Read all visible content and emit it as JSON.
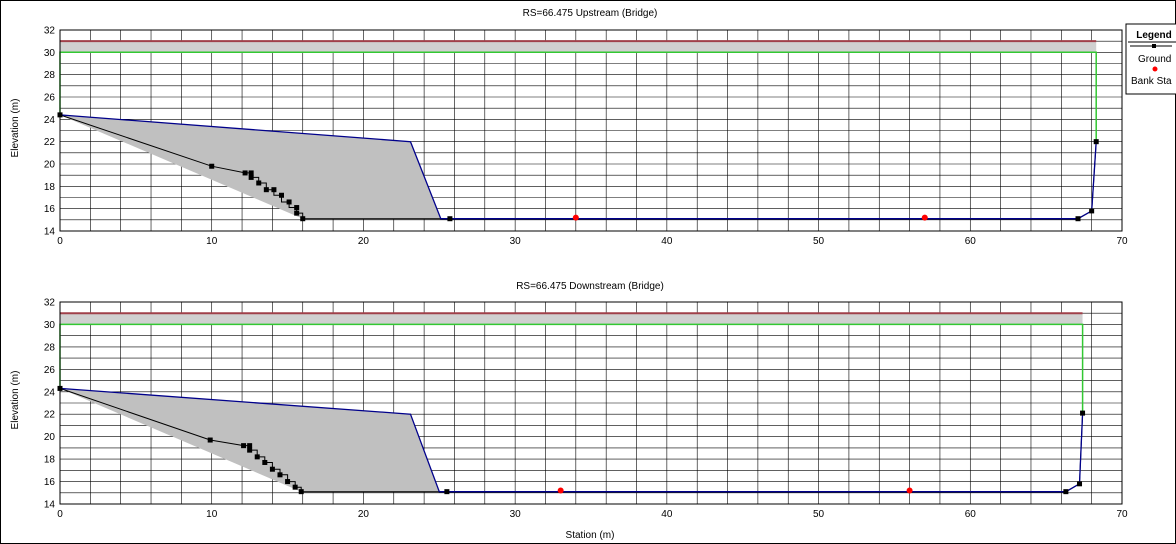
{
  "chart_data": [
    {
      "type": "line",
      "title": "RS=66.475  Upstream  (Bridge)",
      "ylabel": "Elevation (m)",
      "xlabel": "",
      "xlim": [
        0,
        70
      ],
      "ylim": [
        14,
        32
      ],
      "xticks": [
        0,
        10,
        20,
        30,
        40,
        50,
        60,
        70
      ],
      "yticks": [
        14,
        16,
        18,
        20,
        22,
        24,
        26,
        28,
        30,
        32
      ],
      "deck": {
        "low_chord": 30,
        "high_chord": 31,
        "x_start": 0,
        "x_end": 68.3
      },
      "green_outline": [
        [
          0,
          24.4
        ],
        [
          0,
          30
        ],
        [
          68.3,
          30
        ],
        [
          68.3,
          22
        ]
      ],
      "ground": [
        [
          0,
          24.4
        ],
        [
          10,
          19.8
        ],
        [
          12.2,
          19.2
        ],
        [
          12.6,
          19.2
        ],
        [
          12.6,
          18.8
        ],
        [
          13.1,
          18.8
        ],
        [
          13.1,
          18.3
        ],
        [
          13.6,
          18.3
        ],
        [
          13.6,
          17.7
        ],
        [
          14.1,
          17.7
        ],
        [
          14.1,
          17.2
        ],
        [
          14.6,
          17.2
        ],
        [
          14.6,
          16.6
        ],
        [
          15.1,
          16.6
        ],
        [
          15.1,
          16.1
        ],
        [
          15.6,
          16.1
        ],
        [
          15.6,
          15.6
        ],
        [
          16.0,
          15.6
        ],
        [
          16.0,
          15.1
        ],
        [
          25.7,
          15.1
        ],
        [
          67.1,
          15.1
        ],
        [
          68.0,
          15.8
        ],
        [
          68.3,
          22
        ]
      ],
      "ground_markers": [
        [
          0,
          24.4
        ],
        [
          10,
          19.8
        ],
        [
          12.2,
          19.2
        ],
        [
          12.6,
          19.2
        ],
        [
          12.6,
          18.8
        ],
        [
          13.1,
          18.3
        ],
        [
          13.6,
          17.7
        ],
        [
          14.1,
          17.7
        ],
        [
          14.6,
          17.2
        ],
        [
          15.1,
          16.6
        ],
        [
          15.6,
          16.1
        ],
        [
          15.6,
          15.6
        ],
        [
          16.0,
          15.1
        ],
        [
          25.7,
          15.1
        ],
        [
          67.1,
          15.1
        ],
        [
          68.0,
          15.8
        ],
        [
          68.3,
          22
        ]
      ],
      "pier": [
        [
          0,
          24.4
        ],
        [
          23.1,
          22
        ],
        [
          25.1,
          15.1
        ],
        [
          16.0,
          15.1
        ]
      ],
      "bridge_profile": [
        [
          0,
          24.4
        ],
        [
          23.1,
          22
        ],
        [
          25.1,
          15.1
        ],
        [
          67.1,
          15.1
        ],
        [
          68.0,
          15.8
        ],
        [
          68.3,
          22
        ]
      ],
      "bank_stations": [
        [
          34,
          15.2
        ],
        [
          57,
          15.2
        ]
      ]
    },
    {
      "type": "line",
      "title": "RS=66.475  Downstream  (Bridge)",
      "ylabel": "Elevation (m)",
      "xlabel": "Station (m)",
      "xlim": [
        0,
        70
      ],
      "ylim": [
        14,
        32
      ],
      "xticks": [
        0,
        10,
        20,
        30,
        40,
        50,
        60,
        70
      ],
      "yticks": [
        14,
        16,
        18,
        20,
        22,
        24,
        26,
        28,
        30,
        32
      ],
      "deck": {
        "low_chord": 30,
        "high_chord": 31,
        "x_start": 0,
        "x_end": 67.4
      },
      "green_outline": [
        [
          0,
          24.3
        ],
        [
          0,
          30
        ],
        [
          67.4,
          30
        ],
        [
          67.4,
          22.1
        ]
      ],
      "ground": [
        [
          0,
          24.3
        ],
        [
          9.9,
          19.7
        ],
        [
          12.1,
          19.2
        ],
        [
          12.5,
          19.2
        ],
        [
          12.5,
          18.8
        ],
        [
          13.0,
          18.8
        ],
        [
          13.0,
          18.2
        ],
        [
          13.5,
          18.2
        ],
        [
          13.5,
          17.7
        ],
        [
          14.0,
          17.7
        ],
        [
          14.0,
          17.1
        ],
        [
          14.5,
          17.1
        ],
        [
          14.5,
          16.6
        ],
        [
          15.0,
          16.6
        ],
        [
          15.0,
          16.0
        ],
        [
          15.5,
          16.0
        ],
        [
          15.5,
          15.5
        ],
        [
          15.9,
          15.5
        ],
        [
          15.9,
          15.1
        ],
        [
          25.5,
          15.1
        ],
        [
          66.3,
          15.1
        ],
        [
          67.2,
          15.8
        ],
        [
          67.4,
          22.1
        ]
      ],
      "ground_markers": [
        [
          0,
          24.3
        ],
        [
          9.9,
          19.7
        ],
        [
          12.1,
          19.2
        ],
        [
          12.5,
          19.2
        ],
        [
          12.5,
          18.8
        ],
        [
          13.0,
          18.2
        ],
        [
          13.5,
          17.7
        ],
        [
          14.0,
          17.1
        ],
        [
          14.5,
          16.6
        ],
        [
          15.0,
          16.0
        ],
        [
          15.5,
          15.5
        ],
        [
          15.9,
          15.1
        ],
        [
          25.5,
          15.1
        ],
        [
          66.3,
          15.1
        ],
        [
          67.2,
          15.8
        ],
        [
          67.4,
          22.1
        ]
      ],
      "pier": [
        [
          0,
          24.3
        ],
        [
          23.1,
          22
        ],
        [
          25.0,
          15.1
        ],
        [
          15.9,
          15.1
        ]
      ],
      "bridge_profile": [
        [
          0,
          24.3
        ],
        [
          23.1,
          22
        ],
        [
          25.0,
          15.1
        ],
        [
          66.3,
          15.1
        ],
        [
          67.2,
          15.8
        ],
        [
          67.4,
          22.1
        ]
      ],
      "bank_stations": [
        [
          33,
          15.2
        ],
        [
          56,
          15.2
        ]
      ]
    }
  ],
  "legend": {
    "title": "Legend",
    "items": [
      {
        "label": "Ground",
        "color": "#000000",
        "marker": "square"
      },
      {
        "label": "Bank Sta",
        "color": "#ff0000",
        "marker": "circle"
      }
    ]
  },
  "colors": {
    "grid": "#000000",
    "ground": "#000000",
    "bridge": "#00008b",
    "pier_fill": "#c0c0c0",
    "deck_fill": "#d0d0d0",
    "deck_top": "#a0404a",
    "deck_edge": "#32c832",
    "bank": "#ff0000"
  }
}
